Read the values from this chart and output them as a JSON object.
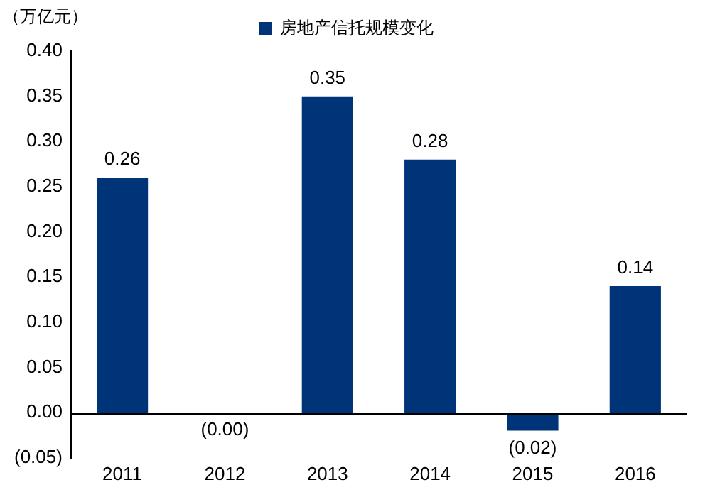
{
  "chart_data": {
    "type": "bar",
    "ylabel": "（万亿元）",
    "categories": [
      "2011",
      "2012",
      "2013",
      "2014",
      "2015",
      "2016"
    ],
    "series": [
      {
        "name": "房地产信托规模变化",
        "color": "#003478",
        "values": [
          0.26,
          0,
          0.35,
          0.28,
          -0.02,
          0.14
        ],
        "value_labels": [
          "0.26",
          "(0.00)",
          "0.35",
          "0.28",
          "(0.02)",
          "0.14"
        ]
      }
    ],
    "ylim": [
      -0.05,
      0.4
    ],
    "yticks": [
      {
        "value": -0.05,
        "label": "(0.05)"
      },
      {
        "value": 0,
        "label": "0.00"
      },
      {
        "value": 0.05,
        "label": "0.05"
      },
      {
        "value": 0.1,
        "label": "0.10"
      },
      {
        "value": 0.15,
        "label": "0.15"
      },
      {
        "value": 0.2,
        "label": "0.20"
      },
      {
        "value": 0.25,
        "label": "0.25"
      },
      {
        "value": 0.3,
        "label": "0.30"
      },
      {
        "value": 0.35,
        "label": "0.35"
      },
      {
        "value": 0.4,
        "label": "0.40"
      }
    ],
    "ref_lines": [
      {
        "axis": "y",
        "value": 0,
        "color": "#000000"
      }
    ],
    "legend": "top",
    "grid": false
  }
}
